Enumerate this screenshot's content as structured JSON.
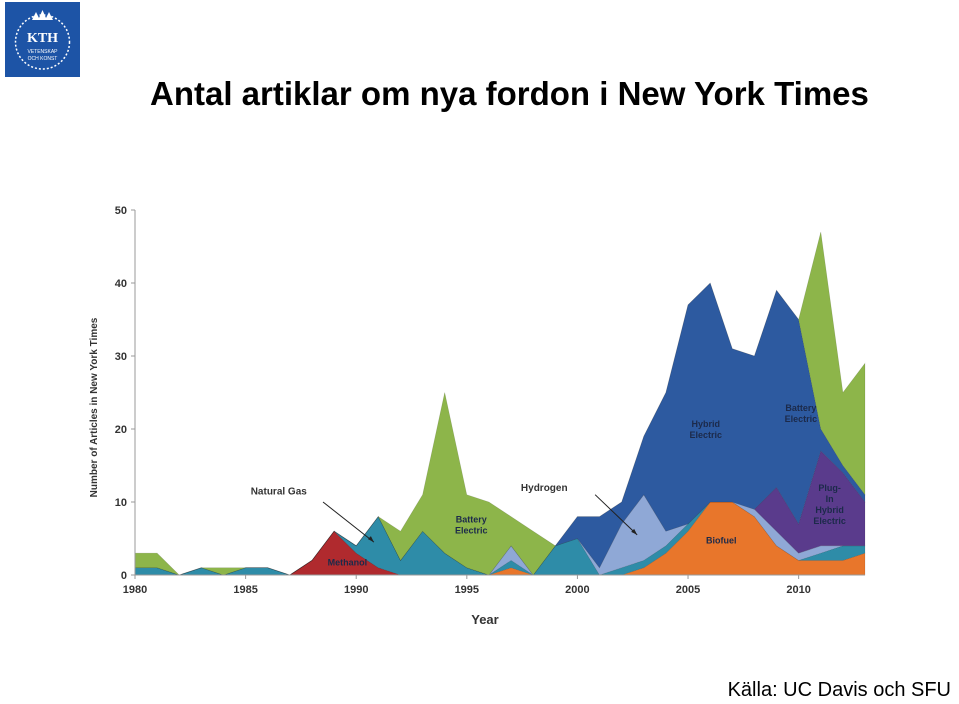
{
  "logo": {
    "text": "KTH",
    "subtext": [
      "VETENSKAP",
      "OCH KONST"
    ],
    "color": "#1d54a6"
  },
  "title": "Antal artiklar om nya fordon i New York Times",
  "source": "Källa: UC Davis och SFU",
  "chart_data": {
    "type": "area",
    "stacked": true,
    "xlabel": "Year",
    "ylabel": "Number of Articles in New York Times",
    "xlim": [
      1980,
      2013
    ],
    "ylim": [
      0,
      50
    ],
    "xticks": [
      1980,
      1985,
      1990,
      1995,
      2000,
      2005,
      2010
    ],
    "yticks": [
      0,
      10,
      20,
      30,
      40,
      50
    ],
    "grid": false,
    "legend": "none",
    "x": [
      1980,
      1981,
      1982,
      1983,
      1984,
      1985,
      1986,
      1987,
      1988,
      1989,
      1990,
      1991,
      1992,
      1993,
      1994,
      1995,
      1996,
      1997,
      1998,
      1999,
      2000,
      2001,
      2002,
      2003,
      2004,
      2005,
      2006,
      2007,
      2008,
      2009,
      2010,
      2011,
      2012,
      2013
    ],
    "series": [
      {
        "name": "Methanol",
        "color": "#b02a2e",
        "values": [
          0,
          0,
          0,
          0,
          0,
          0,
          0,
          0,
          2,
          6,
          3,
          1,
          0,
          0,
          0,
          0,
          0,
          0,
          0,
          0,
          0,
          0,
          0,
          0,
          0,
          0,
          0,
          0,
          0,
          0,
          0,
          0,
          0,
          0
        ]
      },
      {
        "name": "Biofuel",
        "color": "#e8762b",
        "values": [
          0,
          0,
          0,
          0,
          0,
          0,
          0,
          0,
          0,
          0,
          0,
          0,
          0,
          0,
          0,
          0,
          0,
          1,
          0,
          0,
          0,
          0,
          0,
          1,
          3,
          6,
          10,
          10,
          8,
          4,
          2,
          2,
          2,
          3
        ]
      },
      {
        "name": "Natural Gas",
        "color": "#2e8ca8",
        "values": [
          1,
          1,
          0,
          1,
          0,
          1,
          1,
          0,
          0,
          0,
          1,
          7,
          2,
          6,
          3,
          1,
          0,
          1,
          0,
          4,
          5,
          0,
          1,
          1,
          1,
          1,
          0,
          0,
          0,
          0,
          0,
          1,
          2,
          1
        ]
      },
      {
        "name": "Hydrogen",
        "color": "#8fa8d6",
        "values": [
          0,
          0,
          0,
          0,
          0,
          0,
          0,
          0,
          0,
          0,
          0,
          0,
          0,
          0,
          0,
          0,
          0,
          2,
          0,
          0,
          0,
          1,
          6,
          9,
          2,
          0,
          0,
          0,
          1,
          2,
          1,
          1,
          0,
          0
        ]
      },
      {
        "name": "Plug-In Hybrid Electric",
        "color": "#5a3b8c",
        "values": [
          0,
          0,
          0,
          0,
          0,
          0,
          0,
          0,
          0,
          0,
          0,
          0,
          0,
          0,
          0,
          0,
          0,
          0,
          0,
          0,
          0,
          0,
          0,
          0,
          0,
          0,
          0,
          0,
          0,
          6,
          4,
          13,
          10,
          6
        ]
      },
      {
        "name": "Hybrid Electric",
        "color": "#2d5aa0",
        "values": [
          0,
          0,
          0,
          0,
          0,
          0,
          0,
          0,
          0,
          0,
          0,
          0,
          0,
          0,
          0,
          0,
          0,
          0,
          0,
          0,
          3,
          7,
          3,
          8,
          19,
          30,
          30,
          21,
          21,
          27,
          28,
          3,
          1,
          1
        ]
      },
      {
        "name": "Battery Electric",
        "color": "#8db54a",
        "values": [
          2,
          2,
          0,
          0,
          1,
          0,
          0,
          0,
          0,
          0,
          0,
          0,
          4,
          5,
          22,
          10,
          10,
          4,
          6,
          0,
          0,
          0,
          0,
          0,
          0,
          0,
          0,
          0,
          0,
          0,
          0,
          27,
          10,
          18
        ]
      }
    ],
    "labels": {
      "natural_gas": "Natural Gas",
      "methanol": "Methanol",
      "battery_electric": [
        "Battery",
        "Electric"
      ],
      "hydrogen": "Hydrogen",
      "hybrid_electric": [
        "Hybrid",
        "Electric"
      ],
      "biofuel": "Biofuel",
      "plug_in": [
        "Plug-",
        "In",
        "Hybrid",
        "Electric"
      ]
    }
  }
}
